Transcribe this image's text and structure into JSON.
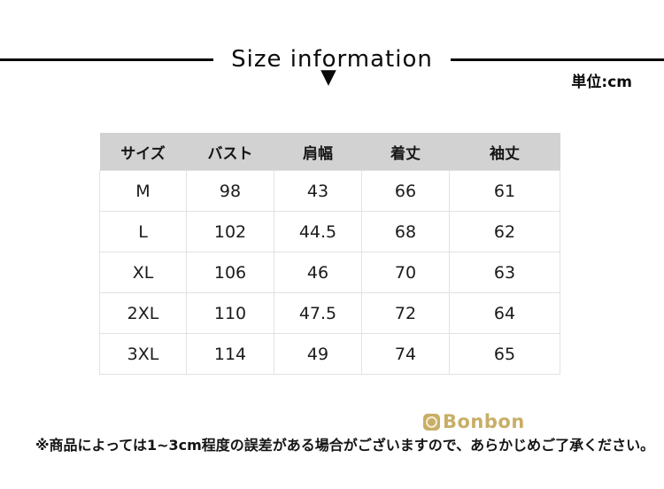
{
  "header": {
    "title": "Size information",
    "unit_label": "単位:cm"
  },
  "icons": {
    "down_triangle": "▼"
  },
  "table": {
    "columns": [
      "サイズ",
      "バスト",
      "肩幅",
      "着丈",
      "袖丈"
    ],
    "rows": [
      [
        "M",
        "98",
        "43",
        "66",
        "61"
      ],
      [
        "L",
        "102",
        "44.5",
        "68",
        "62"
      ],
      [
        "XL",
        "106",
        "46",
        "70",
        "63"
      ],
      [
        "2XL",
        "110",
        "47.5",
        "72",
        "64"
      ],
      [
        "3XL",
        "114",
        "49",
        "74",
        "65"
      ]
    ]
  },
  "footer": {
    "brand": "Bonbon",
    "note": "※商品によっては1~3cm程度の誤差がある場合がございますので、あらかじめご了承ください。"
  },
  "colors": {
    "header_row_bg": "#d2d2d2",
    "table_border": "#dfe3e5",
    "brand_gold": "#c8ae66",
    "title_black": "#0a0a0a"
  },
  "chart_data": {
    "type": "table",
    "title": "Size information",
    "unit": "cm",
    "columns": [
      "サイズ",
      "バスト",
      "肩幅",
      "着丈",
      "袖丈"
    ],
    "rows": [
      {
        "サイズ": "M",
        "バスト": 98,
        "肩幅": 43,
        "着丈": 66,
        "袖丈": 61
      },
      {
        "サイズ": "L",
        "バスト": 102,
        "肩幅": 44.5,
        "着丈": 68,
        "袖丈": 62
      },
      {
        "サイズ": "XL",
        "バスト": 106,
        "肩幅": 46,
        "着丈": 70,
        "袖丈": 63
      },
      {
        "サイズ": "2XL",
        "バスト": 110,
        "肩幅": 47.5,
        "着丈": 72,
        "袖丈": 64
      },
      {
        "サイズ": "3XL",
        "バスト": 114,
        "肩幅": 49,
        "着丈": 74,
        "袖丈": 65
      }
    ]
  }
}
